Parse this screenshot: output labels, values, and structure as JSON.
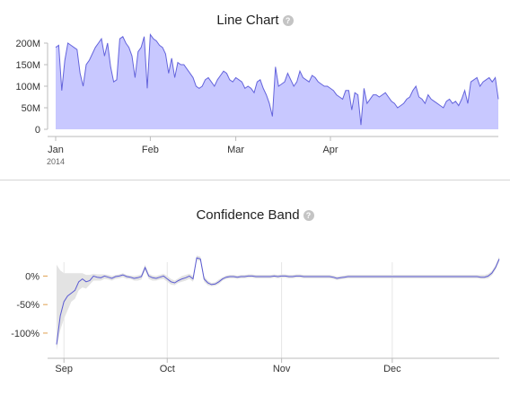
{
  "charts": {
    "line_chart_title": "Line Chart",
    "band_chart_title": "Confidence Band",
    "help_glyph": "?"
  },
  "chart_data": [
    {
      "type": "area",
      "title": "Line Chart",
      "x_ticks": [
        "Jan",
        "Feb",
        "Mar",
        "Apr"
      ],
      "x_tick_sub": "2014",
      "y_ticks": [
        "0",
        "50M",
        "100M",
        "150M",
        "200M"
      ],
      "ylim": [
        0,
        200000000
      ],
      "x_range_days": [
        0,
        145
      ],
      "tick_days": [
        0,
        31,
        59,
        90
      ],
      "fill_color": "#c8c8ff",
      "line_color": "#6464dc",
      "series": [
        {
          "x": [
            0,
            1,
            2,
            3,
            4,
            5,
            6,
            7,
            8,
            9,
            10,
            11,
            12,
            13,
            14,
            15,
            16,
            17,
            18,
            19,
            20,
            21,
            22,
            23,
            24,
            25,
            26,
            27,
            28,
            29,
            30,
            31,
            32,
            33,
            34,
            35,
            36,
            37,
            38,
            39,
            40,
            41,
            42,
            43,
            44,
            45,
            46,
            47,
            48,
            49,
            50,
            51,
            52,
            53,
            54,
            55,
            56,
            57,
            58,
            59,
            60,
            61,
            62,
            63,
            64,
            65,
            66,
            67,
            68,
            69,
            70,
            71,
            72,
            73,
            74,
            75,
            76,
            77,
            78,
            79,
            80,
            81,
            82,
            83,
            84,
            85,
            86,
            87,
            88,
            89,
            90,
            91,
            92,
            93,
            94,
            95,
            96,
            97,
            98,
            99,
            100,
            101,
            102,
            103,
            104,
            105,
            106,
            107,
            108,
            109,
            110,
            111,
            112,
            113,
            114,
            115,
            116,
            117,
            118,
            119,
            120,
            121,
            122,
            123,
            124,
            125,
            126,
            127,
            128,
            129,
            130,
            131,
            132,
            133,
            134,
            135,
            136,
            137,
            138,
            139,
            140,
            141,
            142,
            143,
            144,
            145
          ],
          "y": [
            190000000,
            195000000,
            90000000,
            160000000,
            200000000,
            195000000,
            190000000,
            185000000,
            130000000,
            100000000,
            150000000,
            160000000,
            175000000,
            190000000,
            200000000,
            210000000,
            170000000,
            200000000,
            145000000,
            110000000,
            115000000,
            210000000,
            215000000,
            200000000,
            190000000,
            170000000,
            120000000,
            180000000,
            190000000,
            215000000,
            95000000,
            220000000,
            210000000,
            205000000,
            195000000,
            190000000,
            175000000,
            130000000,
            165000000,
            120000000,
            155000000,
            150000000,
            150000000,
            140000000,
            130000000,
            120000000,
            100000000,
            95000000,
            100000000,
            115000000,
            120000000,
            110000000,
            100000000,
            115000000,
            125000000,
            135000000,
            130000000,
            115000000,
            110000000,
            120000000,
            115000000,
            110000000,
            95000000,
            100000000,
            95000000,
            85000000,
            110000000,
            115000000,
            95000000,
            80000000,
            60000000,
            30000000,
            145000000,
            100000000,
            105000000,
            110000000,
            130000000,
            115000000,
            100000000,
            110000000,
            135000000,
            120000000,
            115000000,
            110000000,
            125000000,
            120000000,
            110000000,
            105000000,
            100000000,
            100000000,
            95000000,
            90000000,
            80000000,
            75000000,
            70000000,
            90000000,
            90000000,
            45000000,
            85000000,
            80000000,
            10000000,
            95000000,
            60000000,
            70000000,
            80000000,
            80000000,
            75000000,
            80000000,
            85000000,
            75000000,
            65000000,
            60000000,
            50000000,
            55000000,
            60000000,
            70000000,
            75000000,
            90000000,
            100000000,
            75000000,
            70000000,
            60000000,
            80000000,
            70000000,
            65000000,
            60000000,
            55000000,
            50000000,
            65000000,
            70000000,
            60000000,
            65000000,
            55000000,
            70000000,
            90000000,
            60000000,
            110000000,
            115000000,
            120000000,
            100000000,
            110000000,
            115000000,
            120000000,
            110000000,
            120000000,
            70000000
          ]
        }
      ]
    },
    {
      "type": "line",
      "title": "Confidence Band",
      "x_ticks": [
        "Sep",
        "Oct",
        "Nov",
        "Dec"
      ],
      "y_ticks": [
        "0%",
        "-50%",
        "-100%"
      ],
      "ylim": [
        -130,
        40
      ],
      "x_range_days": [
        0,
        120
      ],
      "tick_days": [
        2,
        30,
        61,
        91
      ],
      "band_color": "#e3e3e3",
      "line_color": "#5a5ad2",
      "series": [
        {
          "x": [
            0,
            1,
            2,
            3,
            4,
            5,
            6,
            7,
            8,
            9,
            10,
            11,
            12,
            13,
            14,
            15,
            16,
            17,
            18,
            19,
            20,
            21,
            22,
            23,
            24,
            25,
            26,
            27,
            28,
            29,
            30,
            31,
            32,
            33,
            34,
            35,
            36,
            37,
            38,
            39,
            40,
            41,
            42,
            43,
            44,
            45,
            46,
            47,
            48,
            49,
            50,
            51,
            52,
            53,
            54,
            55,
            56,
            57,
            58,
            59,
            60,
            61,
            62,
            63,
            64,
            65,
            66,
            67,
            68,
            69,
            70,
            71,
            72,
            73,
            74,
            75,
            76,
            77,
            78,
            79,
            80,
            81,
            82,
            83,
            84,
            85,
            86,
            87,
            88,
            89,
            90,
            91,
            92,
            93,
            94,
            95,
            96,
            97,
            98,
            99,
            100,
            101,
            102,
            103,
            104,
            105,
            106,
            107,
            108,
            109,
            110,
            111,
            112,
            113,
            114,
            115,
            116,
            117,
            118,
            119,
            120
          ],
          "y": [
            -120,
            -70,
            -45,
            -35,
            -30,
            -25,
            -10,
            -5,
            -10,
            -8,
            0,
            -2,
            -3,
            0,
            -2,
            -4,
            -1,
            0,
            2,
            -1,
            -2,
            -4,
            -3,
            -1,
            15,
            0,
            -3,
            -4,
            -2,
            0,
            -5,
            -10,
            -12,
            -8,
            -5,
            -3,
            0,
            -5,
            32,
            30,
            -5,
            -12,
            -15,
            -14,
            -10,
            -5,
            -2,
            -1,
            -1,
            -2,
            -1,
            -1,
            0,
            0,
            -1,
            -1,
            -1,
            -1,
            -1,
            0,
            -1,
            0,
            0,
            -1,
            -1,
            0,
            0,
            -1,
            -1,
            -1,
            -1,
            -1,
            -1,
            -1,
            -1,
            -2,
            -4,
            -3,
            -2,
            -1,
            -1,
            -1,
            -1,
            -1,
            -1,
            -1,
            -1,
            -1,
            -1,
            -1,
            -1,
            -1,
            -1,
            -1,
            -1,
            -1,
            -1,
            -1,
            -1,
            -1,
            -1,
            -1,
            -1,
            -1,
            -1,
            -1,
            -1,
            -1,
            -1,
            -1,
            -1,
            -1,
            -1,
            -1,
            -1,
            -2,
            -2,
            0,
            5,
            15,
            30
          ],
          "lower": [
            -130,
            -95,
            -75,
            -60,
            -45,
            -40,
            -25,
            -20,
            -22,
            -15,
            -8,
            -8,
            -8,
            -5,
            -6,
            -8,
            -5,
            -4,
            -2,
            -5,
            -5,
            -8,
            -8,
            -6,
            10,
            -5,
            -8,
            -8,
            -6,
            -5,
            -10,
            -15,
            -16,
            -12,
            -10,
            -8,
            -5,
            -10,
            28,
            26,
            -10,
            -16,
            -18,
            -17,
            -14,
            -8,
            -5,
            -4,
            -4,
            -5,
            -4,
            -4,
            -3,
            -3,
            -4,
            -4,
            -4,
            -4,
            -4,
            -3,
            -4,
            -3,
            -3,
            -4,
            -4,
            -3,
            -3,
            -4,
            -4,
            -4,
            -4,
            -4,
            -4,
            -4,
            -4,
            -5,
            -7,
            -6,
            -5,
            -4,
            -4,
            -4,
            -4,
            -4,
            -4,
            -4,
            -4,
            -4,
            -4,
            -4,
            -4,
            -4,
            -4,
            -4,
            -4,
            -4,
            -4,
            -4,
            -4,
            -4,
            -4,
            -4,
            -4,
            -4,
            -4,
            -4,
            -4,
            -4,
            -4,
            -4,
            -4,
            -4,
            -4,
            -4,
            -4,
            -5,
            -5,
            -4,
            1,
            11,
            26
          ],
          "upper": [
            20,
            10,
            5,
            5,
            5,
            5,
            5,
            5,
            2,
            2,
            4,
            3,
            3,
            3,
            2,
            0,
            2,
            3,
            5,
            2,
            1,
            0,
            1,
            3,
            20,
            4,
            1,
            0,
            2,
            4,
            0,
            -5,
            -8,
            -4,
            0,
            2,
            4,
            0,
            36,
            34,
            0,
            -8,
            -12,
            -11,
            -6,
            -2,
            1,
            2,
            2,
            1,
            2,
            2,
            3,
            3,
            2,
            2,
            2,
            2,
            2,
            3,
            2,
            3,
            3,
            2,
            2,
            3,
            3,
            2,
            2,
            2,
            2,
            2,
            2,
            2,
            2,
            1,
            -1,
            0,
            1,
            2,
            2,
            2,
            2,
            2,
            2,
            2,
            2,
            2,
            2,
            2,
            2,
            2,
            2,
            2,
            2,
            2,
            2,
            2,
            2,
            2,
            2,
            2,
            2,
            2,
            2,
            2,
            2,
            2,
            2,
            2,
            2,
            2,
            2,
            2,
            2,
            2,
            2,
            4,
            9,
            19,
            34
          ]
        }
      ]
    }
  ]
}
